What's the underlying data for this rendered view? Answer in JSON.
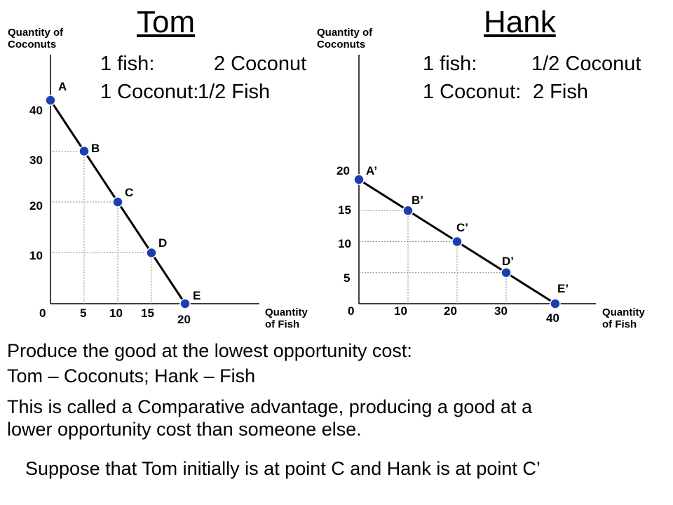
{
  "slide": {
    "lines": [
      "Produce the good at the lowest opportunity cost:",
      "Tom – Coconuts; Hank – Fish",
      "This is called a Comparative advantage, producing a good at a",
      "lower opportunity cost than someone else."
    ],
    "footer": "Suppose that Tom initially is at point C and Hank is at point C’"
  },
  "chart_data": [
    {
      "type": "line",
      "title": "Tom",
      "ylabel": "Quantity of\nCoconuts",
      "xlabel": "Quantity\nof Fish",
      "rates": [
        {
          "label": "1 fish:",
          "value": "2 Coconut"
        },
        {
          "label": "1 Coconut:",
          "value": "1/2 Fish"
        }
      ],
      "xticks": [
        "0",
        "5",
        "10",
        "15",
        "20"
      ],
      "yticks": [
        "10",
        "20",
        "30",
        "40"
      ],
      "points": [
        {
          "name": "A",
          "x": 0,
          "y": 40
        },
        {
          "name": "B",
          "x": 5,
          "y": 30
        },
        {
          "name": "C",
          "x": 10,
          "y": 20
        },
        {
          "name": "D",
          "x": 15,
          "y": 10
        },
        {
          "name": "E",
          "x": 20,
          "y": 0
        }
      ],
      "style": {
        "line_color": "#000000",
        "marker_fill": "#1a3fb0",
        "guide_color": "#888888"
      }
    },
    {
      "type": "line",
      "title": "Hank",
      "ylabel": "Quantity of\nCoconuts",
      "xlabel": "Quantity\nof Fish",
      "rates": [
        {
          "label": "1 fish:",
          "value": "1/2 Coconut"
        },
        {
          "label": "1 Coconut:",
          "value": "2 Fish"
        }
      ],
      "xticks": [
        "0",
        "10",
        "20",
        "30",
        "40"
      ],
      "yticks": [
        "5",
        "10",
        "15",
        "20"
      ],
      "points": [
        {
          "name": "A’",
          "x": 0,
          "y": 20
        },
        {
          "name": "B’",
          "x": 10,
          "y": 15
        },
        {
          "name": "C’",
          "x": 20,
          "y": 10
        },
        {
          "name": "D’",
          "x": 30,
          "y": 5
        },
        {
          "name": "E’",
          "x": 40,
          "y": 0
        }
      ],
      "style": {
        "line_color": "#000000",
        "marker_fill": "#1a3fb0",
        "guide_color": "#888888"
      }
    }
  ]
}
